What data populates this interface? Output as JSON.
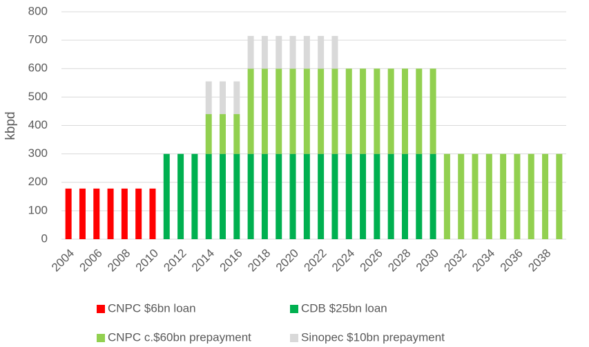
{
  "chart_data": {
    "type": "stacked-bar",
    "y_label": "kbpd",
    "categories": [
      "2004",
      null,
      "2006",
      null,
      "2008",
      null,
      "2010",
      null,
      "2012",
      null,
      "2014",
      null,
      "2016",
      null,
      "2018",
      null,
      "2020",
      null,
      "2022",
      null,
      "2024",
      null,
      "2026",
      null,
      "2028",
      null,
      "2030",
      null,
      "2032",
      null,
      "2034",
      null,
      "2036",
      null,
      "2038",
      null
    ],
    "series": [
      {
        "name": "CNPC $6bn loan",
        "color": "#ff0000",
        "values": [
          178,
          178,
          178,
          178,
          178,
          178,
          178,
          null,
          null,
          null,
          null,
          null,
          null,
          null,
          null,
          null,
          null,
          null,
          null,
          null,
          null,
          null,
          null,
          null,
          null,
          null,
          null,
          null,
          null,
          null,
          null,
          null,
          null,
          null,
          null,
          null
        ]
      },
      {
        "name": "CDB $25bn loan",
        "color": "#00b050",
        "values": [
          null,
          null,
          null,
          null,
          null,
          null,
          null,
          300,
          300,
          300,
          300,
          300,
          300,
          300,
          300,
          300,
          300,
          300,
          300,
          300,
          300,
          300,
          300,
          300,
          300,
          300,
          300,
          null,
          null,
          null,
          null,
          null,
          null,
          null,
          null,
          null
        ]
      },
      {
        "name": "CNPC c.$60bn prepayment",
        "color": "#92d050",
        "values": [
          null,
          null,
          null,
          null,
          null,
          null,
          null,
          null,
          null,
          null,
          140,
          140,
          140,
          300,
          300,
          300,
          300,
          300,
          300,
          300,
          300,
          300,
          300,
          300,
          300,
          300,
          300,
          300,
          300,
          300,
          300,
          300,
          300,
          300,
          300,
          300
        ]
      },
      {
        "name": "Sinopec $10bn prepayment",
        "color": "#d9d9d9",
        "values": [
          null,
          null,
          null,
          null,
          null,
          null,
          null,
          null,
          null,
          null,
          115,
          115,
          115,
          115,
          115,
          115,
          115,
          115,
          115,
          115,
          null,
          null,
          null,
          null,
          null,
          null,
          null,
          null,
          null,
          null,
          null,
          null,
          null,
          null,
          null,
          null
        ]
      }
    ],
    "ylim": [
      0,
      800
    ],
    "yticks": [
      0,
      100,
      200,
      300,
      400,
      500,
      600,
      700,
      800
    ],
    "grid": true
  }
}
